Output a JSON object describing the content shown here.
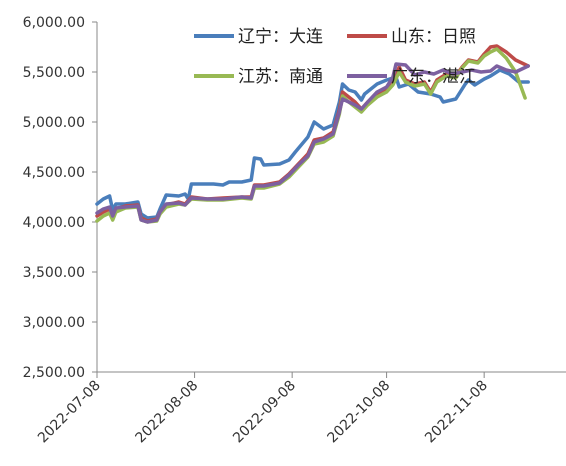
{
  "chart_data": {
    "type": "line",
    "title": "",
    "xlabel": "",
    "ylabel": "",
    "ylim": [
      2500,
      6000
    ],
    "yticks": [
      2500,
      3000,
      3500,
      4000,
      4500,
      5000,
      5500,
      6000
    ],
    "ytick_labels": [
      "2,500.00",
      "3,000.00",
      "3,500.00",
      "4,000.00",
      "4,500.00",
      "5,000.00",
      "5,500.00",
      "6,000.00"
    ],
    "xlim": [
      "2022-07-08",
      "2022-12-04"
    ],
    "xticks": [
      "2022-07-08",
      "2022-08-08",
      "2022-09-08",
      "2022-10-08",
      "2022-11-08"
    ],
    "grid": false,
    "legend_position": "top-right",
    "series": [
      {
        "name": "辽宁：大连",
        "color": "#4A7EBB",
        "points": [
          [
            "2022-07-08",
            4180
          ],
          [
            "2022-07-10",
            4230
          ],
          [
            "2022-07-12",
            4260
          ],
          [
            "2022-07-13",
            4120
          ],
          [
            "2022-07-14",
            4180
          ],
          [
            "2022-07-17",
            4180
          ],
          [
            "2022-07-21",
            4200
          ],
          [
            "2022-07-22",
            4080
          ],
          [
            "2022-07-24",
            4040
          ],
          [
            "2022-07-27",
            4050
          ],
          [
            "2022-07-28",
            4130
          ],
          [
            "2022-07-30",
            4270
          ],
          [
            "2022-08-03",
            4260
          ],
          [
            "2022-08-05",
            4280
          ],
          [
            "2022-08-06",
            4230
          ],
          [
            "2022-08-07",
            4380
          ],
          [
            "2022-08-12",
            4380
          ],
          [
            "2022-08-14",
            4380
          ],
          [
            "2022-08-17",
            4370
          ],
          [
            "2022-08-19",
            4400
          ],
          [
            "2022-08-23",
            4400
          ],
          [
            "2022-08-26",
            4420
          ],
          [
            "2022-08-27",
            4640
          ],
          [
            "2022-08-29",
            4630
          ],
          [
            "2022-08-30",
            4570
          ],
          [
            "2022-09-04",
            4580
          ],
          [
            "2022-09-07",
            4620
          ],
          [
            "2022-09-09",
            4700
          ],
          [
            "2022-09-13",
            4850
          ],
          [
            "2022-09-15",
            5000
          ],
          [
            "2022-09-18",
            4930
          ],
          [
            "2022-09-21",
            4970
          ],
          [
            "2022-09-23",
            5200
          ],
          [
            "2022-09-24",
            5380
          ],
          [
            "2022-09-26",
            5320
          ],
          [
            "2022-09-28",
            5300
          ],
          [
            "2022-09-30",
            5220
          ],
          [
            "2022-10-01",
            5280
          ],
          [
            "2022-10-05",
            5380
          ],
          [
            "2022-10-08",
            5420
          ],
          [
            "2022-10-11",
            5450
          ],
          [
            "2022-10-12",
            5350
          ],
          [
            "2022-10-15",
            5380
          ],
          [
            "2022-10-18",
            5300
          ],
          [
            "2022-10-22",
            5280
          ],
          [
            "2022-10-25",
            5250
          ],
          [
            "2022-10-26",
            5200
          ],
          [
            "2022-10-30",
            5230
          ],
          [
            "2022-11-02",
            5380
          ],
          [
            "2022-11-03",
            5420
          ],
          [
            "2022-11-05",
            5370
          ],
          [
            "2022-11-08",
            5430
          ],
          [
            "2022-11-10",
            5460
          ],
          [
            "2022-11-13",
            5520
          ],
          [
            "2022-11-16",
            5480
          ],
          [
            "2022-11-19",
            5400
          ],
          [
            "2022-11-22",
            5400
          ]
        ]
      },
      {
        "name": "山东：日照",
        "color": "#BE4B48",
        "points": [
          [
            "2022-07-08",
            4060
          ],
          [
            "2022-07-10",
            4100
          ],
          [
            "2022-07-12",
            4130
          ],
          [
            "2022-07-13",
            4050
          ],
          [
            "2022-07-14",
            4130
          ],
          [
            "2022-07-17",
            4160
          ],
          [
            "2022-07-21",
            4170
          ],
          [
            "2022-07-22",
            4040
          ],
          [
            "2022-07-24",
            4010
          ],
          [
            "2022-07-27",
            4030
          ],
          [
            "2022-07-28",
            4100
          ],
          [
            "2022-07-30",
            4170
          ],
          [
            "2022-08-03",
            4200
          ],
          [
            "2022-08-05",
            4180
          ],
          [
            "2022-08-07",
            4250
          ],
          [
            "2022-08-12",
            4230
          ],
          [
            "2022-08-17",
            4240
          ],
          [
            "2022-08-23",
            4250
          ],
          [
            "2022-08-26",
            4250
          ],
          [
            "2022-08-27",
            4370
          ],
          [
            "2022-08-30",
            4370
          ],
          [
            "2022-09-04",
            4400
          ],
          [
            "2022-09-07",
            4480
          ],
          [
            "2022-09-10",
            4580
          ],
          [
            "2022-09-13",
            4680
          ],
          [
            "2022-09-15",
            4820
          ],
          [
            "2022-09-18",
            4840
          ],
          [
            "2022-09-21",
            4900
          ],
          [
            "2022-09-23",
            5120
          ],
          [
            "2022-09-24",
            5300
          ],
          [
            "2022-09-26",
            5250
          ],
          [
            "2022-09-28",
            5200
          ],
          [
            "2022-09-30",
            5130
          ],
          [
            "2022-10-02",
            5200
          ],
          [
            "2022-10-05",
            5280
          ],
          [
            "2022-10-08",
            5330
          ],
          [
            "2022-10-10",
            5400
          ],
          [
            "2022-10-12",
            5550
          ],
          [
            "2022-10-14",
            5420
          ],
          [
            "2022-10-17",
            5380
          ],
          [
            "2022-10-20",
            5400
          ],
          [
            "2022-10-22",
            5300
          ],
          [
            "2022-10-24",
            5420
          ],
          [
            "2022-10-27",
            5480
          ],
          [
            "2022-10-30",
            5460
          ],
          [
            "2022-11-01",
            5550
          ],
          [
            "2022-11-03",
            5620
          ],
          [
            "2022-11-06",
            5600
          ],
          [
            "2022-11-08",
            5680
          ],
          [
            "2022-11-10",
            5750
          ],
          [
            "2022-11-12",
            5760
          ],
          [
            "2022-11-15",
            5700
          ],
          [
            "2022-11-18",
            5620
          ],
          [
            "2022-11-22",
            5560
          ]
        ]
      },
      {
        "name": "江苏：南通",
        "color": "#98B954",
        "points": [
          [
            "2022-07-08",
            4010
          ],
          [
            "2022-07-10",
            4060
          ],
          [
            "2022-07-12",
            4090
          ],
          [
            "2022-07-13",
            4020
          ],
          [
            "2022-07-14",
            4100
          ],
          [
            "2022-07-17",
            4140
          ],
          [
            "2022-07-21",
            4150
          ],
          [
            "2022-07-22",
            4020
          ],
          [
            "2022-07-24",
            4000
          ],
          [
            "2022-07-27",
            4010
          ],
          [
            "2022-07-28",
            4080
          ],
          [
            "2022-07-30",
            4150
          ],
          [
            "2022-08-03",
            4180
          ],
          [
            "2022-08-05",
            4170
          ],
          [
            "2022-08-07",
            4230
          ],
          [
            "2022-08-12",
            4220
          ],
          [
            "2022-08-17",
            4220
          ],
          [
            "2022-08-23",
            4240
          ],
          [
            "2022-08-26",
            4230
          ],
          [
            "2022-08-27",
            4340
          ],
          [
            "2022-08-30",
            4340
          ],
          [
            "2022-09-04",
            4380
          ],
          [
            "2022-09-07",
            4450
          ],
          [
            "2022-09-10",
            4550
          ],
          [
            "2022-09-13",
            4650
          ],
          [
            "2022-09-15",
            4780
          ],
          [
            "2022-09-18",
            4800
          ],
          [
            "2022-09-21",
            4860
          ],
          [
            "2022-09-23",
            5080
          ],
          [
            "2022-09-24",
            5260
          ],
          [
            "2022-09-26",
            5200
          ],
          [
            "2022-09-28",
            5150
          ],
          [
            "2022-09-30",
            5100
          ],
          [
            "2022-10-02",
            5170
          ],
          [
            "2022-10-05",
            5250
          ],
          [
            "2022-10-08",
            5300
          ],
          [
            "2022-10-10",
            5370
          ],
          [
            "2022-10-12",
            5500
          ],
          [
            "2022-10-14",
            5400
          ],
          [
            "2022-10-17",
            5360
          ],
          [
            "2022-10-20",
            5380
          ],
          [
            "2022-10-22",
            5280
          ],
          [
            "2022-10-24",
            5400
          ],
          [
            "2022-10-27",
            5460
          ],
          [
            "2022-10-30",
            5440
          ],
          [
            "2022-11-01",
            5540
          ],
          [
            "2022-11-03",
            5610
          ],
          [
            "2022-11-06",
            5590
          ],
          [
            "2022-11-08",
            5660
          ],
          [
            "2022-11-10",
            5700
          ],
          [
            "2022-11-12",
            5730
          ],
          [
            "2022-11-15",
            5640
          ],
          [
            "2022-11-18",
            5500
          ],
          [
            "2022-11-21",
            5240
          ]
        ]
      },
      {
        "name": "广东：湛江",
        "color": "#7D60A0",
        "points": [
          [
            "2022-07-08",
            4090
          ],
          [
            "2022-07-10",
            4130
          ],
          [
            "2022-07-12",
            4150
          ],
          [
            "2022-07-13",
            4060
          ],
          [
            "2022-07-14",
            4140
          ],
          [
            "2022-07-17",
            4150
          ],
          [
            "2022-07-21",
            4160
          ],
          [
            "2022-07-22",
            4020
          ],
          [
            "2022-07-24",
            4000
          ],
          [
            "2022-07-27",
            4020
          ],
          [
            "2022-07-28",
            4100
          ],
          [
            "2022-07-30",
            4180
          ],
          [
            "2022-08-03",
            4190
          ],
          [
            "2022-08-05",
            4170
          ],
          [
            "2022-08-07",
            4240
          ],
          [
            "2022-08-12",
            4230
          ],
          [
            "2022-08-17",
            4230
          ],
          [
            "2022-08-23",
            4250
          ],
          [
            "2022-08-26",
            4240
          ],
          [
            "2022-08-27",
            4360
          ],
          [
            "2022-08-30",
            4360
          ],
          [
            "2022-09-04",
            4390
          ],
          [
            "2022-09-07",
            4470
          ],
          [
            "2022-09-10",
            4570
          ],
          [
            "2022-09-13",
            4660
          ],
          [
            "2022-09-15",
            4800
          ],
          [
            "2022-09-18",
            4830
          ],
          [
            "2022-09-21",
            4880
          ],
          [
            "2022-09-23",
            5100
          ],
          [
            "2022-09-24",
            5230
          ],
          [
            "2022-09-26",
            5200
          ],
          [
            "2022-09-28",
            5170
          ],
          [
            "2022-09-30",
            5130
          ],
          [
            "2022-10-02",
            5200
          ],
          [
            "2022-10-05",
            5300
          ],
          [
            "2022-10-08",
            5350
          ],
          [
            "2022-10-10",
            5450
          ],
          [
            "2022-10-11",
            5580
          ],
          [
            "2022-10-14",
            5570
          ],
          [
            "2022-10-17",
            5470
          ],
          [
            "2022-10-20",
            5500
          ],
          [
            "2022-10-23",
            5480
          ],
          [
            "2022-10-26",
            5520
          ],
          [
            "2022-10-29",
            5480
          ],
          [
            "2022-11-01",
            5500
          ],
          [
            "2022-11-04",
            5520
          ],
          [
            "2022-11-07",
            5500
          ],
          [
            "2022-11-10",
            5510
          ],
          [
            "2022-11-12",
            5560
          ],
          [
            "2022-11-15",
            5520
          ],
          [
            "2022-11-18",
            5500
          ],
          [
            "2022-11-22",
            5560
          ]
        ]
      }
    ]
  }
}
